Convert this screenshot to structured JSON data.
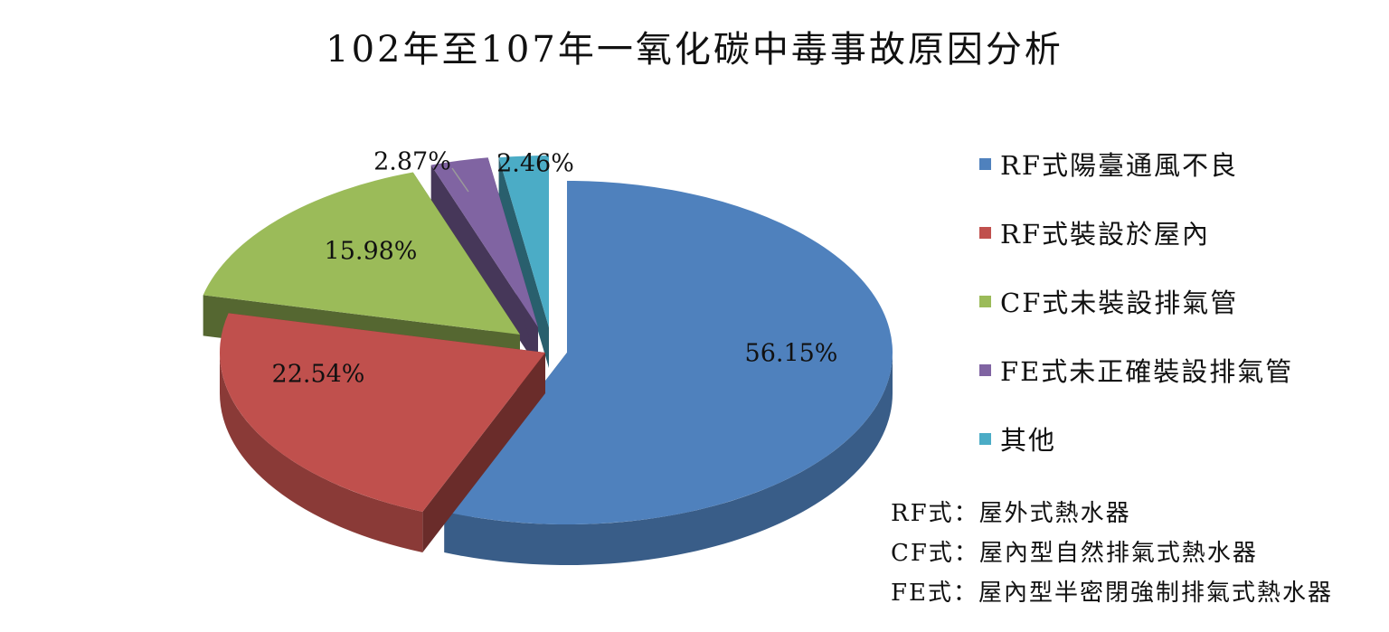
{
  "chart_data": {
    "type": "pie",
    "title": "102年至107年一氧化碳中毒事故原因分析",
    "categories": [
      "RF式陽臺通風不良",
      "RF式裝設於屋內",
      "CF式未裝設排氣管",
      "FE式未正確裝設排氣管",
      "其他"
    ],
    "values": [
      56.15,
      22.54,
      15.98,
      2.87,
      2.46
    ],
    "data_labels": [
      "56.15%",
      "22.54%",
      "15.98%",
      "2.87%",
      "2.46%"
    ],
    "colors": [
      "#4F81BD",
      "#C0504D",
      "#9BBB59",
      "#8064A2",
      "#4BACC6"
    ],
    "legend_placement": "right",
    "style": "3d-exploded"
  },
  "legend": {
    "items": [
      {
        "label": "RF式陽臺通風不良",
        "color": "#4F81BD"
      },
      {
        "label": "RF式裝設於屋內",
        "color": "#C0504D"
      },
      {
        "label": "CF式未裝設排氣管",
        "color": "#9BBB59"
      },
      {
        "label": "FE式未正確裝設排氣管",
        "color": "#8064A2"
      },
      {
        "label": "其他",
        "color": "#4BACC6"
      }
    ]
  },
  "notes": [
    "RF式：屋外式熱水器",
    "CF式：屋內型自然排氣式熱水器",
    "FE式：屋內型半密閉強制排氣式熱水器"
  ]
}
